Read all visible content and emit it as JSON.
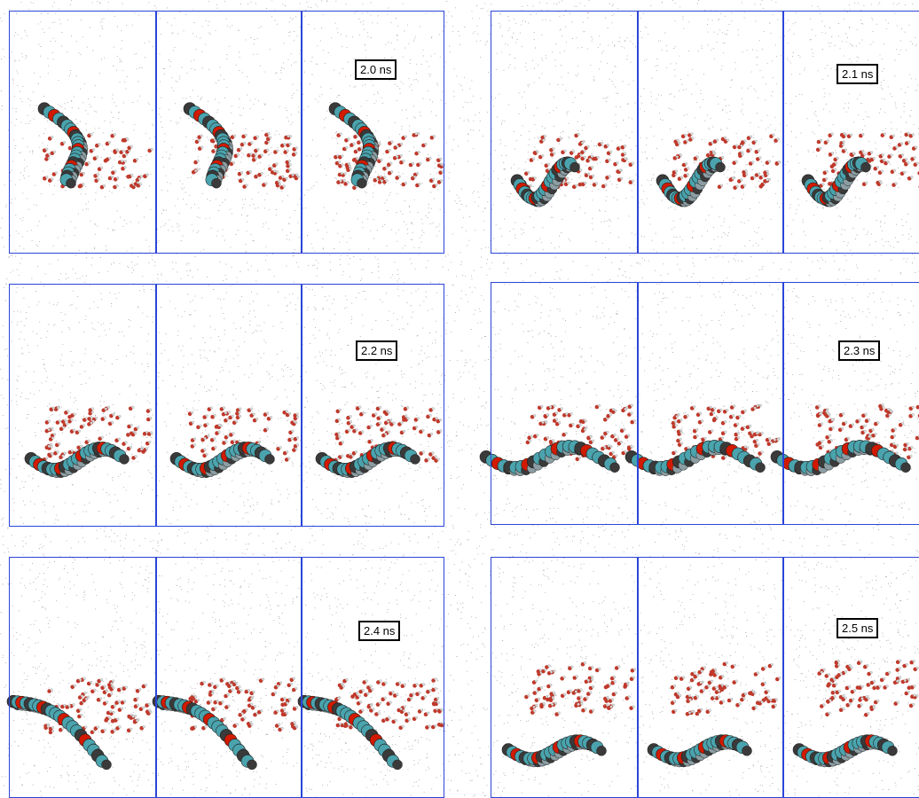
{
  "snapshots": [
    {
      "time": "2.0 ns"
    },
    {
      "time": "2.1 ns"
    },
    {
      "time": "2.2 ns"
    },
    {
      "time": "2.3 ns"
    },
    {
      "time": "2.4 ns"
    },
    {
      "time": "2.5 ns"
    }
  ],
  "colors": {
    "box_border": "#2b45d8",
    "solvent_dots": "#8a8a8a",
    "water_oxygen": "#c0392b",
    "polymer_cyan": "#4aa3ad",
    "polymer_dark": "#3a3a3a",
    "polymer_red": "#d11a00"
  }
}
